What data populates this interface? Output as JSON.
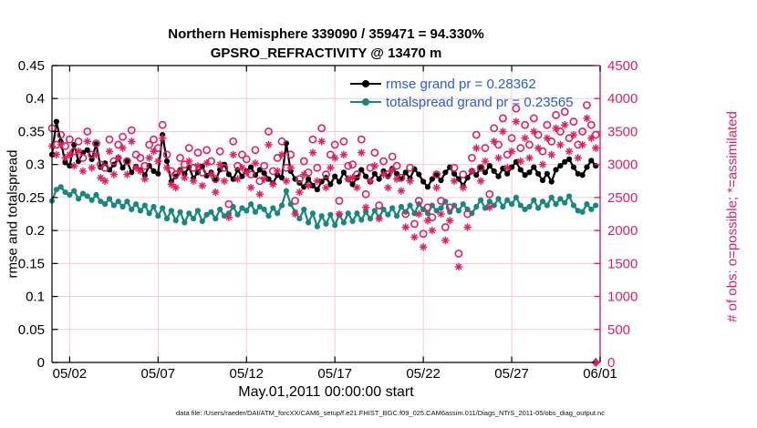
{
  "footer": {
    "text": "data file: /Users/raeder/DAI/ATM_forcXX/CAM6_setup/f.e21.FHIST_BGC.f09_025.CAM6assim.011/Diags_NTrS_2011-05/obs_diag_output.nc"
  },
  "chart_data": {
    "type": "line+scatter",
    "title": "Northern Hemisphere 339090 / 359471 = 94.330%",
    "subtitle": "GPSRO_REFRACTIVITY @ 13470 m",
    "xlabel": "May.01,2011 00:00:00 start",
    "ylabel_left": "rmse and totalspread",
    "ylabel_right": "# of obs: o=possible; *=assimilated",
    "x_unit": "days since May.01,2011 00:00:00",
    "x_range_days": [
      0,
      31
    ],
    "x_step_days": 0.25,
    "x_ticks": [
      {
        "day": 1,
        "label": "05/02"
      },
      {
        "day": 6,
        "label": "05/07"
      },
      {
        "day": 11,
        "label": "05/12"
      },
      {
        "day": 16,
        "label": "05/17"
      },
      {
        "day": 21,
        "label": "05/22"
      },
      {
        "day": 26,
        "label": "05/27"
      },
      {
        "day": 31,
        "label": "06/01"
      }
    ],
    "ylim_left": [
      0,
      0.45
    ],
    "yticks_left": [
      {
        "v": 0,
        "label": "0"
      },
      {
        "v": 0.05,
        "label": "0.05"
      },
      {
        "v": 0.1,
        "label": "0.1"
      },
      {
        "v": 0.15,
        "label": "0.15"
      },
      {
        "v": 0.2,
        "label": "0.2"
      },
      {
        "v": 0.25,
        "label": "0.25"
      },
      {
        "v": 0.3,
        "label": "0.3"
      },
      {
        "v": 0.35,
        "label": "0.35"
      },
      {
        "v": 0.4,
        "label": "0.4"
      },
      {
        "v": 0.45,
        "label": "0.45"
      }
    ],
    "ylim_right": [
      0,
      4500
    ],
    "yticks_right": [
      {
        "v": 0,
        "label": "0"
      },
      {
        "v": 500,
        "label": "500"
      },
      {
        "v": 1000,
        "label": "1000"
      },
      {
        "v": 1500,
        "label": "1500"
      },
      {
        "v": 2000,
        "label": "2000"
      },
      {
        "v": 2500,
        "label": "2500"
      },
      {
        "v": 3000,
        "label": "3000"
      },
      {
        "v": 3500,
        "label": "3500"
      },
      {
        "v": 4000,
        "label": "4000"
      },
      {
        "v": 4500,
        "label": "4500"
      }
    ],
    "grid": true,
    "colors": {
      "rmse": "#000000",
      "totalspread": "#178780",
      "obs_pink": "#e02060",
      "grid_pink": "#f4ccd8",
      "legend_text": "#2a5ae0",
      "axis_black": "#000000"
    },
    "legend": [
      {
        "label": "rmse grand pr = 0.28362",
        "color": "#000000",
        "marker": "filled-circle"
      },
      {
        "label": "totalspread grand pr = 0.23565",
        "color": "#178780",
        "marker": "filled-circle"
      }
    ],
    "legend_position": "inside-top-center-right",
    "series": [
      {
        "name": "rmse",
        "type": "line",
        "axis": "left",
        "marker": "filled-circle",
        "color": "#000000",
        "values": [
          0.315,
          0.365,
          0.335,
          0.303,
          0.298,
          0.33,
          0.305,
          0.318,
          0.322,
          0.308,
          0.331,
          0.296,
          0.302,
          0.292,
          0.3,
          0.31,
          0.295,
          0.305,
          0.288,
          0.297,
          0.292,
          0.284,
          0.298,
          0.29,
          0.286,
          0.345,
          0.305,
          0.274,
          0.282,
          0.292,
          0.286,
          0.296,
          0.279,
          0.288,
          0.297,
          0.283,
          0.288,
          0.276,
          0.292,
          0.3,
          0.285,
          0.278,
          0.292,
          0.282,
          0.29,
          0.296,
          0.284,
          0.292,
          0.287,
          0.278,
          0.272,
          0.284,
          0.28,
          0.332,
          0.29,
          0.278,
          0.272,
          0.266,
          0.278,
          0.268,
          0.262,
          0.274,
          0.28,
          0.27,
          0.282,
          0.274,
          0.288,
          0.278,
          0.27,
          0.28,
          0.292,
          0.282,
          0.274,
          0.286,
          0.278,
          0.29,
          0.282,
          0.294,
          0.286,
          0.278,
          0.288,
          0.279,
          0.293,
          0.285,
          0.274,
          0.266,
          0.278,
          0.284,
          0.276,
          0.288,
          0.296,
          0.286,
          0.278,
          0.268,
          0.28,
          0.29,
          0.284,
          0.296,
          0.288,
          0.298,
          0.29,
          0.282,
          0.294,
          0.286,
          0.296,
          0.304,
          0.292,
          0.284,
          0.288,
          0.296,
          0.286,
          0.276,
          0.286,
          0.274,
          0.292,
          0.298,
          0.304,
          0.308,
          0.296,
          0.286,
          0.284,
          0.296,
          0.306,
          0.298
        ]
      },
      {
        "name": "totalspread",
        "type": "line",
        "axis": "left",
        "marker": "filled-circle",
        "color": "#178780",
        "values": [
          0.245,
          0.262,
          0.266,
          0.258,
          0.254,
          0.26,
          0.248,
          0.256,
          0.252,
          0.246,
          0.254,
          0.244,
          0.24,
          0.248,
          0.238,
          0.244,
          0.236,
          0.244,
          0.232,
          0.24,
          0.23,
          0.238,
          0.226,
          0.236,
          0.222,
          0.234,
          0.218,
          0.23,
          0.215,
          0.228,
          0.212,
          0.226,
          0.218,
          0.23,
          0.214,
          0.224,
          0.228,
          0.218,
          0.232,
          0.222,
          0.226,
          0.236,
          0.224,
          0.234,
          0.23,
          0.24,
          0.228,
          0.236,
          0.232,
          0.222,
          0.234,
          0.226,
          0.238,
          0.26,
          0.24,
          0.228,
          0.218,
          0.232,
          0.212,
          0.226,
          0.206,
          0.222,
          0.21,
          0.224,
          0.208,
          0.224,
          0.212,
          0.226,
          0.214,
          0.226,
          0.216,
          0.228,
          0.218,
          0.23,
          0.22,
          0.232,
          0.224,
          0.234,
          0.222,
          0.236,
          0.228,
          0.238,
          0.226,
          0.24,
          0.232,
          0.226,
          0.238,
          0.23,
          0.234,
          0.244,
          0.228,
          0.238,
          0.23,
          0.24,
          0.232,
          0.226,
          0.236,
          0.246,
          0.234,
          0.244,
          0.238,
          0.248,
          0.236,
          0.246,
          0.24,
          0.25,
          0.238,
          0.232,
          0.236,
          0.246,
          0.234,
          0.244,
          0.238,
          0.25,
          0.24,
          0.248,
          0.242,
          0.252,
          0.238,
          0.23,
          0.228,
          0.24,
          0.232,
          0.238
        ]
      },
      {
        "name": "possible",
        "type": "scatter",
        "axis": "right",
        "marker": "open-circle",
        "color": "#e02060",
        "values": [
          3550,
          3300,
          3450,
          3280,
          3380,
          3200,
          3350,
          3100,
          3500,
          3150,
          3320,
          3000,
          2950,
          3380,
          3050,
          3300,
          3420,
          3050,
          3520,
          3150,
          3100,
          2980,
          3300,
          3380,
          3250,
          3600,
          3150,
          2900,
          2850,
          3100,
          3000,
          3250,
          2950,
          3180,
          2880,
          3220,
          3050,
          2780,
          3200,
          2950,
          2400,
          3350,
          2980,
          3150,
          3080,
          2850,
          3220,
          2750,
          2980,
          3500,
          2900,
          3100,
          3350,
          2950,
          3150,
          2450,
          2780,
          3050,
          2880,
          3380,
          2950,
          3550,
          2850,
          3150,
          3300,
          2450,
          3350,
          2980,
          3000,
          2850,
          3380,
          2550,
          2950,
          3180,
          2380,
          3050,
          2850,
          3120,
          2980,
          2800,
          2250,
          2950,
          2100,
          2450,
          1950,
          2350,
          2200,
          2850,
          2450,
          2050,
          2350,
          2950,
          1650,
          2850,
          2250,
          3100,
          3450,
          2950,
          3250,
          2550,
          3550,
          3300,
          3700,
          3150,
          3400,
          3850,
          3250,
          3600,
          3300,
          3700,
          3450,
          3200,
          3600,
          3350,
          3750,
          3500,
          3800,
          3400,
          3650,
          3300,
          3500,
          3900,
          3600,
          3450
        ]
      },
      {
        "name": "assimilated",
        "type": "scatter",
        "axis": "right",
        "marker": "asterisk",
        "color": "#e02060",
        "values": [
          3280,
          3150,
          3300,
          3100,
          3150,
          2980,
          3200,
          2900,
          3350,
          2950,
          3150,
          2800,
          2750,
          3200,
          2850,
          3100,
          3250,
          2850,
          3350,
          2950,
          2900,
          2780,
          3100,
          3200,
          3050,
          3400,
          2950,
          2700,
          2650,
          2900,
          2800,
          3050,
          2750,
          2980,
          2680,
          3020,
          2850,
          2580,
          3000,
          2750,
          2200,
          3150,
          2780,
          2950,
          2880,
          2650,
          3020,
          2550,
          2780,
          3300,
          2700,
          2900,
          3150,
          2750,
          2950,
          2250,
          2580,
          2850,
          2680,
          3180,
          2750,
          3350,
          2650,
          2950,
          3100,
          2250,
          3150,
          2780,
          2800,
          2650,
          3180,
          2350,
          2750,
          2980,
          2180,
          2850,
          2650,
          2920,
          2780,
          2600,
          2050,
          2750,
          1900,
          2250,
          1750,
          2150,
          2000,
          2650,
          2250,
          1850,
          2150,
          2750,
          1450,
          2650,
          2050,
          2900,
          3250,
          2750,
          3050,
          2350,
          3350,
          3100,
          3500,
          2950,
          3200,
          3650,
          3050,
          3400,
          3100,
          3500,
          3250,
          3000,
          3400,
          3150,
          3550,
          3300,
          3600,
          3200,
          3450,
          3100,
          3300,
          3700,
          3400,
          3250
        ]
      }
    ],
    "final_marker": {
      "day": 30.75,
      "value": 0,
      "axis": "right",
      "marker": "filled-diamond",
      "color": "#e02060"
    }
  }
}
